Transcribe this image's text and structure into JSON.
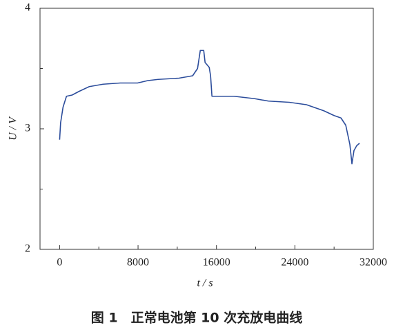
{
  "chart_data": {
    "type": "line",
    "title": "图 1　正常电池第 10 次充放电曲线",
    "x_label": "t / s",
    "y_label": "U / V",
    "xlim": [
      -2000,
      32000
    ],
    "ylim": [
      2,
      4
    ],
    "xticks": [
      0,
      8000,
      16000,
      24000,
      32000
    ],
    "yticks": [
      2,
      3,
      4
    ],
    "xminorticks": [
      4000,
      12000,
      20000,
      28000
    ],
    "yminorticks": [
      2.5,
      3.5
    ],
    "x": [
      0,
      100,
      350,
      700,
      1270,
      1970,
      3020,
      4430,
      6190,
      7950,
      9000,
      10060,
      12170,
      13570,
      14070,
      14350,
      14700,
      14840,
      15260,
      15400,
      15540,
      17790,
      19900,
      21310,
      23420,
      25180,
      26940,
      28000,
      28700,
      29190,
      29610,
      29820,
      30030,
      30310,
      30590
    ],
    "series": [
      {
        "color": "#2b4c9b",
        "values": [
          2.91,
          3.05,
          3.18,
          3.27,
          3.28,
          3.31,
          3.35,
          3.37,
          3.38,
          3.38,
          3.4,
          3.41,
          3.42,
          3.44,
          3.5,
          3.65,
          3.65,
          3.55,
          3.51,
          3.44,
          3.27,
          3.27,
          3.25,
          3.23,
          3.22,
          3.2,
          3.15,
          3.11,
          3.09,
          3.03,
          2.87,
          2.71,
          2.82,
          2.86,
          2.88
        ]
      }
    ]
  }
}
